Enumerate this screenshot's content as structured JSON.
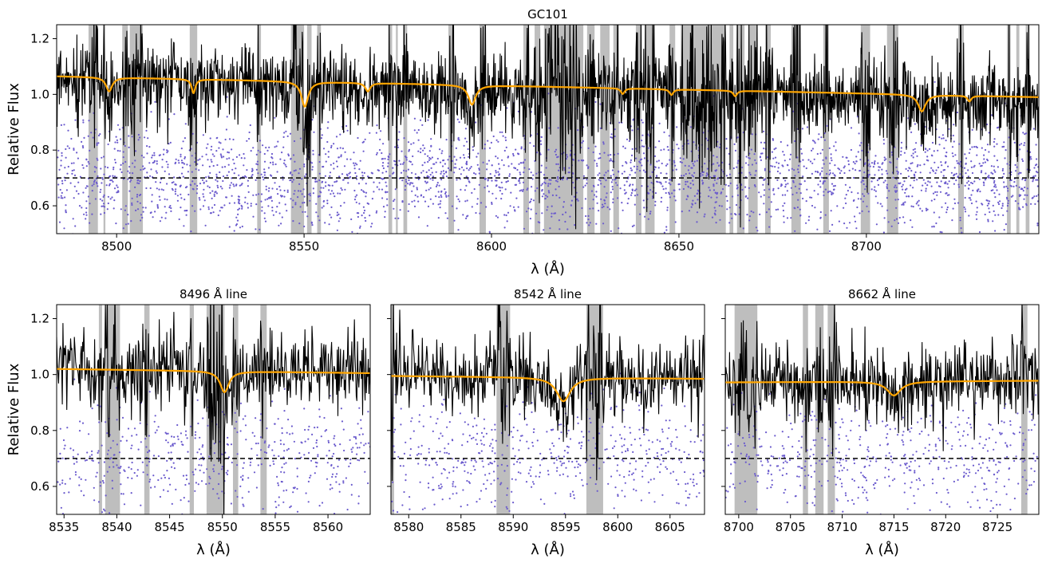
{
  "figure_title": "GC101",
  "chart_data": [
    {
      "id": "full",
      "type": "line",
      "title": "GC101",
      "xlabel": "λ (Å)",
      "ylabel": "Relative Flux",
      "xlim": [
        8484,
        8746
      ],
      "ylim": [
        0.5,
        1.25
      ],
      "xticks": [
        8500,
        8550,
        8600,
        8650,
        8700
      ],
      "yticks": [
        0.6,
        0.8,
        1.0,
        1.2
      ],
      "ytick_labels": [
        "0.6",
        "0.8",
        "1.0",
        "1.2"
      ],
      "reference_line": 0.7,
      "series": [
        {
          "name": "observed spectrum",
          "style": "line",
          "color": "#000000",
          "level": 1.02,
          "noise": 0.07
        },
        {
          "name": "model fit",
          "style": "line",
          "color": "#ffa500",
          "start": 1.065,
          "end": 0.99
        },
        {
          "name": "residuals",
          "style": "scatter",
          "color": "#6a5acd",
          "center": 0.7,
          "spread": 0.1
        }
      ],
      "absorption_lines": [
        {
          "center": 8498.0,
          "depth": 0.05,
          "width": 1.0
        },
        {
          "center": 8520.5,
          "depth": 0.05,
          "width": 0.6
        },
        {
          "center": 8550.2,
          "depth": 0.09,
          "width": 1.1
        },
        {
          "center": 8567.0,
          "depth": 0.03,
          "width": 0.8
        },
        {
          "center": 8594.8,
          "depth": 0.07,
          "width": 1.2
        },
        {
          "center": 8635.0,
          "depth": 0.02,
          "width": 0.6
        },
        {
          "center": 8648.0,
          "depth": 0.02,
          "width": 0.6
        },
        {
          "center": 8665.0,
          "depth": 0.02,
          "width": 0.6
        },
        {
          "center": 8714.8,
          "depth": 0.06,
          "width": 1.2
        },
        {
          "center": 8727.5,
          "depth": 0.02,
          "width": 0.6
        }
      ],
      "masked_regions": [
        [
          8492.5,
          8495
        ],
        [
          8496.5,
          8497
        ],
        [
          8501.5,
          8503
        ],
        [
          8503.5,
          8507
        ],
        [
          8519.5,
          8521.5
        ],
        [
          8537.5,
          8538.5
        ],
        [
          8546.5,
          8550
        ],
        [
          8550.8,
          8552
        ],
        [
          8553.5,
          8554.5
        ],
        [
          8572.5,
          8573.5
        ],
        [
          8574.5,
          8575
        ],
        [
          8576.5,
          8577.5
        ],
        [
          8588.5,
          8590
        ],
        [
          8596.8,
          8598.5
        ],
        [
          8608.5,
          8610
        ],
        [
          8611.5,
          8613
        ],
        [
          8614,
          8624.5
        ],
        [
          8625.5,
          8627.5
        ],
        [
          8629,
          8631.5
        ],
        [
          8632.5,
          8634
        ],
        [
          8638.5,
          8640
        ],
        [
          8641,
          8643.5
        ],
        [
          8647.5,
          8649
        ],
        [
          8650.5,
          8662.5
        ],
        [
          8663.5,
          8664.5
        ],
        [
          8665.5,
          8667.5
        ],
        [
          8668.5,
          8671
        ],
        [
          8673,
          8674.5
        ],
        [
          8680,
          8682.5
        ],
        [
          8688.5,
          8690
        ],
        [
          8698.5,
          8701
        ],
        [
          8705.5,
          8708.5
        ],
        [
          8724.5,
          8726
        ],
        [
          8737.5,
          8738.5
        ],
        [
          8740,
          8740.8
        ],
        [
          8742.5,
          8743.5
        ]
      ]
    },
    {
      "id": "zoom1",
      "type": "line",
      "title": "8496 Å line",
      "xlabel": "λ (Å)",
      "ylabel": "Relative Flux",
      "xlim": [
        8534.3,
        8564
      ],
      "ylim": [
        0.5,
        1.25
      ],
      "xticks": [
        8535,
        8540,
        8545,
        8550,
        8555,
        8560
      ],
      "yticks": [
        0.6,
        0.8,
        1.0,
        1.2
      ],
      "ytick_labels": [
        "0.6",
        "0.8",
        "1.0",
        "1.2"
      ],
      "reference_line": 0.7,
      "series": [
        {
          "name": "observed spectrum",
          "style": "line",
          "color": "#000000",
          "level": 1.02,
          "noise": 0.07
        },
        {
          "name": "model fit",
          "style": "line",
          "color": "#ffa500",
          "start": 1.02,
          "end": 1.005
        },
        {
          "name": "residuals",
          "style": "scatter",
          "color": "#6a5acd",
          "center": 0.7,
          "spread": 0.1
        }
      ],
      "absorption_lines": [
        {
          "center": 8550.2,
          "depth": 0.075,
          "width": 0.5
        }
      ],
      "masked_regions": [
        [
          8538.3,
          8538.6
        ],
        [
          8538.9,
          8540.3
        ],
        [
          8542.6,
          8543.1
        ],
        [
          8546.9,
          8547.3
        ],
        [
          8548.5,
          8550.2
        ],
        [
          8551.0,
          8551.5
        ],
        [
          8553.6,
          8554.2
        ]
      ]
    },
    {
      "id": "zoom2",
      "type": "line",
      "title": "8542 Å line",
      "xlabel": "λ (Å)",
      "ylabel": "",
      "xlim": [
        8578.3,
        8608.3
      ],
      "ylim": [
        0.5,
        1.25
      ],
      "xticks": [
        8580,
        8585,
        8590,
        8595,
        8600,
        8605
      ],
      "yticks": [
        0.6,
        0.8,
        1.0,
        1.2
      ],
      "ytick_labels": [
        "",
        "",
        "",
        ""
      ],
      "reference_line": 0.7,
      "series": [
        {
          "name": "observed spectrum",
          "style": "line",
          "color": "#000000",
          "level": 1.0,
          "noise": 0.07
        },
        {
          "name": "model fit",
          "style": "line",
          "color": "#ffa500",
          "start": 0.995,
          "end": 0.985
        },
        {
          "name": "residuals",
          "style": "scatter",
          "color": "#6a5acd",
          "center": 0.7,
          "spread": 0.1
        }
      ],
      "absorption_lines": [
        {
          "center": 8594.8,
          "depth": 0.085,
          "width": 0.8
        }
      ],
      "masked_regions": [
        [
          8578.3,
          8578.6
        ],
        [
          8588.4,
          8589.7
        ],
        [
          8597.0,
          8598.6
        ]
      ]
    },
    {
      "id": "zoom3",
      "type": "line",
      "title": "8662 Å line",
      "xlabel": "λ (Å)",
      "ylabel": "",
      "xlim": [
        8698.7,
        8729
      ],
      "ylim": [
        0.5,
        1.25
      ],
      "xticks": [
        8700,
        8705,
        8710,
        8715,
        8720,
        8725
      ],
      "yticks": [
        0.6,
        0.8,
        1.0,
        1.2
      ],
      "ytick_labels": [
        "",
        "",
        "",
        ""
      ],
      "reference_line": 0.7,
      "series": [
        {
          "name": "observed spectrum",
          "style": "line",
          "color": "#000000",
          "level": 0.985,
          "noise": 0.07
        },
        {
          "name": "model fit",
          "style": "line",
          "color": "#ffa500",
          "start": 0.972,
          "end": 0.978
        },
        {
          "name": "residuals",
          "style": "scatter",
          "color": "#6a5acd",
          "center": 0.7,
          "spread": 0.1
        }
      ],
      "absorption_lines": [
        {
          "center": 8715.0,
          "depth": 0.05,
          "width": 0.8
        }
      ],
      "masked_regions": [
        [
          8699.6,
          8701.8
        ],
        [
          8706.2,
          8706.7
        ],
        [
          8707.4,
          8708.2
        ],
        [
          8708.6,
          8709.3
        ],
        [
          8727.3,
          8727.9
        ]
      ]
    }
  ]
}
